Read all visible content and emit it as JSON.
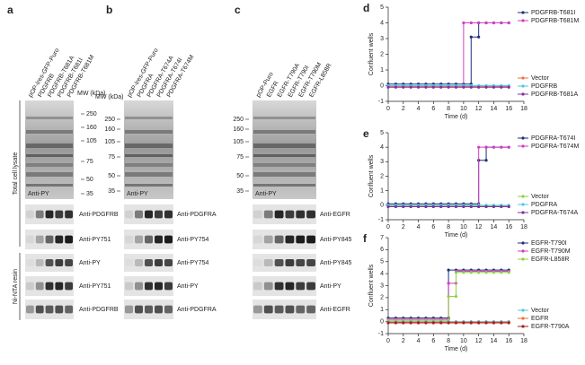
{
  "panels": {
    "a": {
      "label": "a",
      "lanes": [
        "pOP-Ires-GFP-Puro",
        "PDGFRB",
        "PDGFRB-T681A",
        "PDGFRB-T681I",
        "PDGFRB-T681M"
      ],
      "mw_title": "MW (kDa)",
      "mw": [
        "250",
        "160",
        "105",
        "75",
        "50",
        "35"
      ],
      "blots": [
        "Anti-PY",
        "Anti-PDGFRB",
        "Anti-PY751",
        "Anti-PY",
        "Anti-PY751",
        "Anti-PDGFRB"
      ],
      "side_labels": [
        "Total cell lysate",
        "Ni-NTA resin"
      ]
    },
    "b": {
      "label": "b",
      "lanes": [
        "pOP-Ires-GFP-Puro",
        "PDGFRA",
        "PDGFRA-T674A",
        "PDGFRA-T674I",
        "PDGFRA-T674M"
      ],
      "mw_title": "MW (kDa)",
      "mw": [
        "250",
        "160",
        "105",
        "75",
        "50",
        "35"
      ],
      "blots": [
        "Anti-PY",
        "Anti-PDGFRA",
        "Anti-PY754",
        "Anti-PY754",
        "Anti-PY",
        "Anti-PDGFRA"
      ]
    },
    "c": {
      "label": "c",
      "lanes": [
        "pOP-Puro",
        "EGFR",
        "EGFR-T790A",
        "EGFR-T790I",
        "EGFR-T790M",
        "EGFR-L858R"
      ],
      "mw": [
        "250",
        "160",
        "105",
        "75",
        "50",
        "35"
      ],
      "blots": [
        "Anti-PY",
        "Anti-EGFR",
        "Anti-PY845",
        "Anti-PY845",
        "Anti-PY",
        "Anti-EGFR"
      ]
    }
  },
  "chart_data": [
    {
      "type": "line",
      "label": "d",
      "xlabel": "Time (d)",
      "ylabel": "Confluent wells",
      "xlim": [
        0,
        18
      ],
      "xticks": [
        0,
        2,
        4,
        6,
        8,
        10,
        12,
        14,
        16,
        18
      ],
      "ylim": [
        -1,
        5
      ],
      "yticks": [
        -1,
        0,
        1,
        2,
        3,
        4,
        5
      ],
      "series": [
        {
          "name": "PDGFRB-T681I",
          "color": "#1f2f7a",
          "x": [
            0,
            1,
            2,
            3,
            4,
            5,
            6,
            7,
            8,
            9,
            10,
            11,
            11,
            12,
            12,
            13,
            14,
            15,
            16
          ],
          "values": [
            0.1,
            0.1,
            0.1,
            0.1,
            0.1,
            0.1,
            0.1,
            0.1,
            0.1,
            0.1,
            0.1,
            0.1,
            3.1,
            3.1,
            4,
            4,
            4,
            4,
            4
          ]
        },
        {
          "name": "PDGFRB-T681M",
          "color": "#d040c0",
          "x": [
            0,
            1,
            2,
            3,
            4,
            5,
            6,
            7,
            8,
            9,
            10,
            10,
            11,
            12,
            13,
            14,
            15,
            16
          ],
          "values": [
            0,
            0,
            0,
            0,
            0,
            0,
            0,
            0,
            0,
            0,
            0,
            4,
            4,
            4,
            4,
            4,
            4,
            4
          ]
        },
        {
          "name": "Vector",
          "color": "#f07040",
          "x": [
            0,
            1,
            2,
            3,
            4,
            5,
            6,
            7,
            8,
            9,
            10,
            11,
            12,
            13,
            14,
            15,
            16
          ],
          "values": [
            -0.05,
            -0.05,
            -0.05,
            -0.05,
            -0.05,
            -0.05,
            -0.05,
            -0.05,
            -0.05,
            -0.05,
            -0.05,
            -0.05,
            -0.05,
            -0.05,
            -0.05,
            -0.05,
            -0.05
          ]
        },
        {
          "name": "PDGFRB",
          "color": "#50c8e0",
          "x": [
            0,
            1,
            2,
            3,
            4,
            5,
            6,
            7,
            8,
            9,
            10,
            11,
            12,
            13,
            14,
            15,
            16
          ],
          "values": [
            0,
            0,
            0,
            0,
            0,
            0,
            0,
            0,
            0,
            0,
            0,
            0,
            0,
            0,
            0,
            0,
            0
          ]
        },
        {
          "name": "PDGFRB-T681A",
          "color": "#8030a0",
          "x": [
            0,
            1,
            2,
            3,
            4,
            5,
            6,
            7,
            8,
            9,
            10,
            11,
            12,
            13,
            14,
            15,
            16
          ],
          "values": [
            -0.1,
            -0.1,
            -0.1,
            -0.1,
            -0.1,
            -0.1,
            -0.1,
            -0.1,
            -0.1,
            -0.1,
            -0.1,
            -0.1,
            -0.1,
            -0.1,
            -0.1,
            -0.1,
            -0.1
          ]
        }
      ]
    },
    {
      "type": "line",
      "label": "e",
      "xlabel": "Time (d)",
      "ylabel": "Confluent wells",
      "xlim": [
        0,
        18
      ],
      "xticks": [
        0,
        2,
        4,
        6,
        8,
        10,
        12,
        14,
        16,
        18
      ],
      "ylim": [
        -1,
        5
      ],
      "yticks": [
        -1,
        0,
        1,
        2,
        3,
        4,
        5
      ],
      "series": [
        {
          "name": "PDGFRA-T674I",
          "color": "#1f2f7a",
          "x": [
            0,
            1,
            2,
            3,
            4,
            5,
            6,
            7,
            8,
            9,
            10,
            11,
            12,
            12,
            13,
            13,
            14,
            15,
            16
          ],
          "values": [
            0.1,
            0.1,
            0.1,
            0.1,
            0.1,
            0.1,
            0.1,
            0.1,
            0.1,
            0.1,
            0.1,
            0.1,
            0.1,
            3.1,
            3.1,
            4,
            4,
            4,
            4
          ]
        },
        {
          "name": "PDGFRA-T674M",
          "color": "#d040c0",
          "x": [
            0,
            1,
            2,
            3,
            4,
            5,
            6,
            7,
            8,
            9,
            10,
            11,
            12,
            12,
            13,
            14,
            15,
            16
          ],
          "values": [
            0,
            0,
            0,
            0,
            0,
            0,
            0,
            0,
            0,
            0,
            0,
            0,
            0,
            4,
            4,
            4,
            4,
            4
          ]
        },
        {
          "name": "Vector",
          "color": "#90d040",
          "x": [
            0,
            1,
            2,
            3,
            4,
            5,
            6,
            7,
            8,
            9,
            10,
            11,
            12,
            13,
            14,
            15,
            16
          ],
          "values": [
            -0.05,
            -0.05,
            -0.05,
            -0.05,
            -0.05,
            -0.05,
            -0.05,
            -0.05,
            -0.05,
            -0.05,
            -0.05,
            -0.05,
            -0.05,
            -0.05,
            -0.05,
            -0.05,
            -0.05
          ]
        },
        {
          "name": "PDGFRA",
          "color": "#50c8e0",
          "x": [
            0,
            1,
            2,
            3,
            4,
            5,
            6,
            7,
            8,
            9,
            10,
            11,
            12,
            13,
            14,
            15,
            16
          ],
          "values": [
            0,
            0,
            0,
            0,
            0,
            0,
            0,
            0,
            0,
            0,
            0,
            0,
            0,
            0,
            0,
            0,
            0
          ]
        },
        {
          "name": "PDGFRA-T674A",
          "color": "#8030a0",
          "x": [
            0,
            1,
            2,
            3,
            4,
            5,
            6,
            7,
            8,
            9,
            10,
            11,
            12,
            13,
            14,
            15,
            16
          ],
          "values": [
            -0.1,
            -0.1,
            -0.1,
            -0.1,
            -0.1,
            -0.1,
            -0.1,
            -0.1,
            -0.1,
            -0.1,
            -0.1,
            -0.1,
            -0.1,
            -0.1,
            -0.1,
            -0.1,
            -0.1
          ]
        }
      ]
    },
    {
      "type": "line",
      "label": "f",
      "xlabel": "Time (d)",
      "ylabel": "Confluent wells",
      "xlim": [
        0,
        18
      ],
      "xticks": [
        0,
        2,
        4,
        6,
        8,
        10,
        12,
        14,
        16,
        18
      ],
      "ylim": [
        -1,
        7
      ],
      "yticks": [
        -1,
        0,
        1,
        2,
        3,
        4,
        5,
        6,
        7
      ],
      "series": [
        {
          "name": "EGFR-T790I",
          "color": "#1f2f7a",
          "x": [
            0,
            1,
            2,
            3,
            4,
            5,
            6,
            7,
            8,
            8,
            9,
            10,
            11,
            12,
            13,
            14,
            15,
            16
          ],
          "values": [
            0.3,
            0.3,
            0.3,
            0.3,
            0.3,
            0.3,
            0.3,
            0.3,
            0.3,
            4.3,
            4.3,
            4.3,
            4.3,
            4.3,
            4.3,
            4.3,
            4.3,
            4.3
          ]
        },
        {
          "name": "EGFR-T790M",
          "color": "#d040c0",
          "x": [
            0,
            1,
            2,
            3,
            4,
            5,
            6,
            7,
            8,
            8,
            9,
            9,
            10,
            11,
            12,
            13,
            14,
            15,
            16
          ],
          "values": [
            0.2,
            0.2,
            0.2,
            0.2,
            0.2,
            0.2,
            0.2,
            0.2,
            0.2,
            3.2,
            3.2,
            4.2,
            4.2,
            4.2,
            4.2,
            4.2,
            4.2,
            4.2,
            4.2
          ]
        },
        {
          "name": "EGFR-L858R",
          "color": "#90d040",
          "x": [
            0,
            1,
            2,
            3,
            4,
            5,
            6,
            7,
            8,
            8,
            9,
            9,
            10,
            11,
            12,
            13,
            14,
            15,
            16
          ],
          "values": [
            0.1,
            0.1,
            0.1,
            0.1,
            0.1,
            0.1,
            0.1,
            0.1,
            0.1,
            2.1,
            2.1,
            4.1,
            4.1,
            4.1,
            4.1,
            4.1,
            4.1,
            4.1,
            4.1
          ]
        },
        {
          "name": "Vector",
          "color": "#50c8e0",
          "x": [
            0,
            1,
            2,
            3,
            4,
            5,
            6,
            7,
            8,
            9,
            10,
            11,
            12,
            13,
            14,
            15,
            16
          ],
          "values": [
            0,
            0,
            0,
            0,
            0,
            0,
            0,
            0,
            0,
            0,
            0,
            0,
            0,
            0,
            0,
            0,
            0
          ]
        },
        {
          "name": "EGFR",
          "color": "#f07040",
          "x": [
            0,
            1,
            2,
            3,
            4,
            5,
            6,
            7,
            8,
            9,
            10,
            11,
            12,
            13,
            14,
            15,
            16
          ],
          "values": [
            -0.05,
            -0.05,
            -0.05,
            -0.05,
            -0.05,
            -0.05,
            -0.05,
            -0.05,
            -0.05,
            -0.05,
            -0.05,
            -0.05,
            -0.05,
            -0.05,
            -0.05,
            -0.05,
            -0.05
          ]
        },
        {
          "name": "EGFR-T790A",
          "color": "#a02020",
          "x": [
            0,
            1,
            2,
            3,
            4,
            5,
            6,
            7,
            8,
            9,
            10,
            11,
            12,
            13,
            14,
            15,
            16
          ],
          "values": [
            -0.1,
            -0.1,
            -0.1,
            -0.1,
            -0.1,
            -0.1,
            -0.1,
            -0.1,
            -0.1,
            -0.1,
            -0.1,
            -0.1,
            -0.1,
            -0.1,
            -0.1,
            -0.1,
            -0.1
          ]
        }
      ]
    }
  ]
}
